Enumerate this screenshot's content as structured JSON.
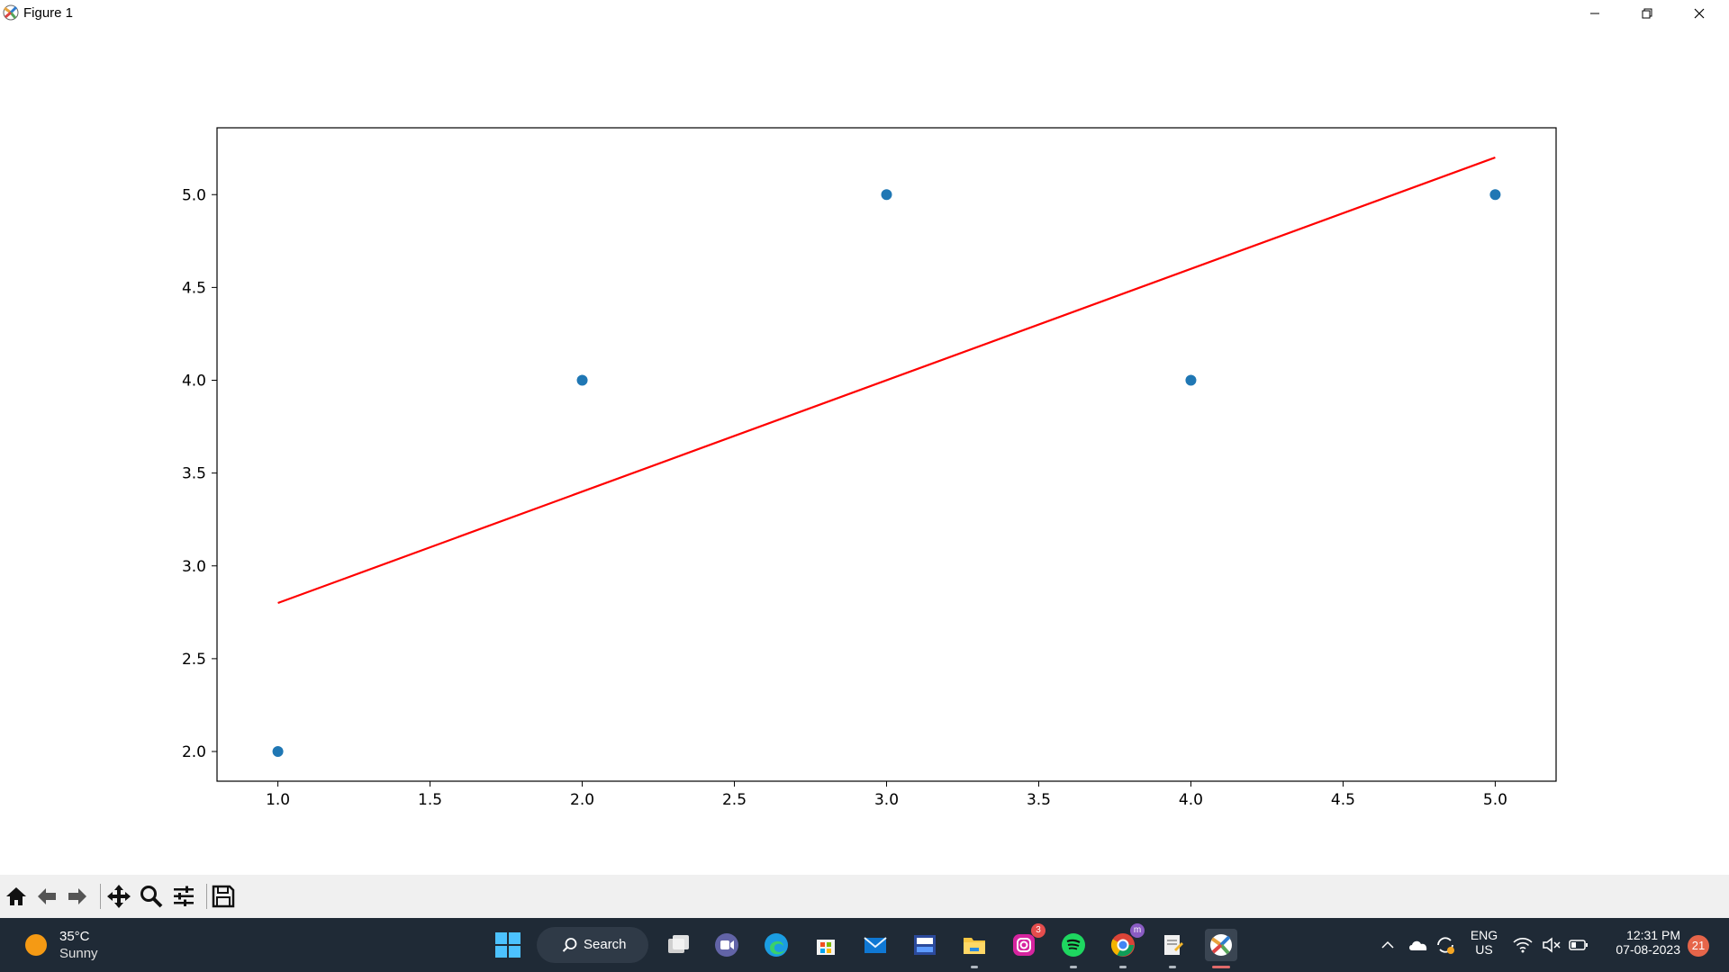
{
  "window": {
    "title": "Figure 1"
  },
  "chart_data": {
    "type": "scatter",
    "series": [
      {
        "type": "scatter",
        "color": "#1f77b4",
        "x": [
          1,
          2,
          3,
          4,
          5
        ],
        "y": [
          2,
          4,
          5,
          4,
          5
        ]
      },
      {
        "type": "line",
        "color": "#ff0000",
        "x": [
          1,
          5
        ],
        "y": [
          2.8,
          5.2
        ]
      }
    ],
    "xlim": [
      0.8,
      5.2
    ],
    "ylim": [
      1.84,
      5.36
    ],
    "xticks": [
      "1.0",
      "1.5",
      "2.0",
      "2.5",
      "3.0",
      "3.5",
      "4.0",
      "4.5",
      "5.0"
    ],
    "yticks": [
      "2.0",
      "2.5",
      "3.0",
      "3.5",
      "4.0",
      "4.5",
      "5.0"
    ],
    "title": "",
    "xlabel": "",
    "ylabel": "",
    "grid": false
  },
  "toolbar": {
    "tools": [
      "home-icon",
      "back-icon",
      "forward-icon",
      "pan-icon",
      "zoom-icon",
      "configure-subplots-icon",
      "save-icon"
    ]
  },
  "taskbar": {
    "weather": {
      "temp": "35°C",
      "condition": "Sunny"
    },
    "search_label": "Search",
    "apps": [
      "start-icon",
      "task-view-icon",
      "teams-icon",
      "edge-icon",
      "store-icon",
      "mail-icon",
      "dev-icon",
      "file-explorer-icon",
      "instagram-icon",
      "spotify-icon",
      "chrome-icon",
      "notepad-icon",
      "matplotlib-icon"
    ],
    "instagram_badge": "3",
    "chrome_badge": "m",
    "language": {
      "line1": "ENG",
      "line2": "US"
    },
    "time": "12:31 PM",
    "date": "07-08-2023",
    "notifications": "21"
  }
}
